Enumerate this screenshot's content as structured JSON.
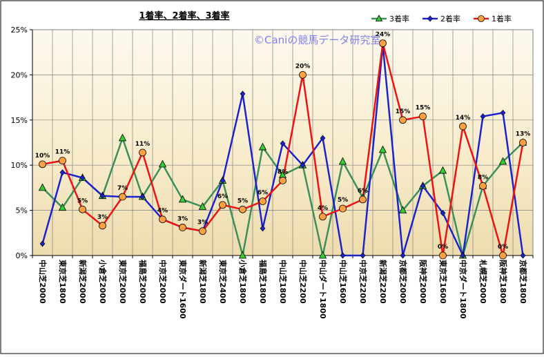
{
  "chart_data": {
    "type": "line",
    "title": "1着率、2着率、3着率",
    "watermark": "©Caniの競馬データ研究室",
    "xlabel": "",
    "ylabel": "",
    "ylim": [
      0,
      25
    ],
    "yticks": [
      "0%",
      "5%",
      "10%",
      "15%",
      "20%",
      "25%"
    ],
    "grid": true,
    "legend_position": "top-right",
    "categories": [
      "中山芝2000",
      "東京芝1800",
      "新潟芝2000",
      "小倉芝2000",
      "東京芝2000",
      "福島芝2000",
      "中京芝2000",
      "東京ダート1600",
      "新潟芝1800",
      "東京芝2400",
      "小倉芝1800",
      "福島芝1800",
      "中山芝1800",
      "中山芝2200",
      "中山ダート1800",
      "中山芝1600",
      "中京芝2200",
      "新潟芝2200",
      "京都芝2000",
      "阪神芝2000",
      "東京芝1600",
      "中京ダート1800",
      "札幌芝2000",
      "阪神芝1800",
      "京都芝1800"
    ],
    "series": [
      {
        "name": "3着率",
        "color": "#3a8f5a",
        "marker": "triangle",
        "marker_color": "#33cc33",
        "values": [
          7.5,
          5.3,
          8.6,
          6.6,
          13.0,
          6.5,
          10.1,
          6.2,
          5.4,
          8.3,
          0.0,
          12.0,
          8.9,
          10.0,
          0.0,
          10.4,
          6.4,
          11.7,
          5.0,
          7.7,
          9.4,
          0.0,
          7.7,
          10.4,
          12.5
        ]
      },
      {
        "name": "2着率",
        "color": "#1a22cc",
        "marker": "diamond",
        "marker_color": "#1a22cc",
        "values": [
          1.3,
          9.2,
          8.6,
          6.6,
          6.5,
          6.5,
          4.0,
          3.1,
          2.7,
          8.3,
          17.9,
          3.0,
          12.4,
          10.0,
          13.0,
          0.0,
          0.0,
          23.3,
          0.0,
          7.7,
          4.7,
          0.0,
          15.4,
          15.8,
          0.0
        ]
      },
      {
        "name": "1着率",
        "color": "#ee1111",
        "marker": "circle",
        "marker_color": "#ffa040",
        "values": [
          10.1,
          10.5,
          5.1,
          3.3,
          6.5,
          11.4,
          4.0,
          3.1,
          2.7,
          5.6,
          5.1,
          6.0,
          8.3,
          20.0,
          4.3,
          5.2,
          6.2,
          23.5,
          15.0,
          15.4,
          0.0,
          14.3,
          7.7,
          0.0,
          12.5
        ]
      }
    ],
    "data_labels": [
      "10%",
      "11%",
      "5%",
      "3%",
      "7%",
      "11%",
      "4%",
      "3%",
      "3%",
      "6%",
      "5%",
      "6%",
      "8%",
      "20%",
      "4%",
      "5%",
      "6%",
      "24%",
      "15%",
      "15%",
      "0%",
      "14%",
      "8%",
      "0%",
      "13%"
    ]
  }
}
